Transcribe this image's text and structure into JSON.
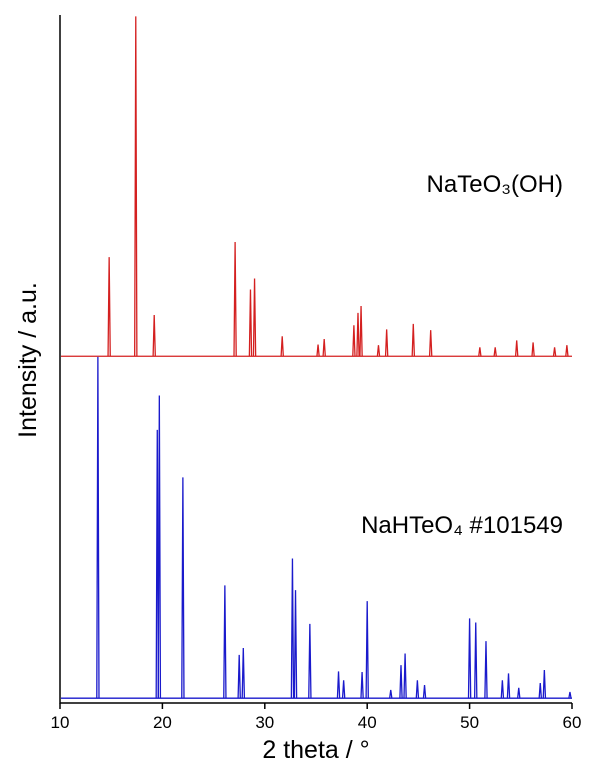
{
  "chart_data": {
    "type": "line",
    "xlabel": "2 theta / °",
    "ylabel": "Intensity / a.u.",
    "xlim": [
      10,
      60
    ],
    "xticks": [
      10,
      20,
      30,
      40,
      50,
      60
    ],
    "ylim": [
      0,
      100
    ],
    "series": [
      {
        "name": "NaTeO₃(OH)",
        "color": "#d42020",
        "offset": 50.4,
        "x": [
          14.8,
          17.4,
          19.2,
          27.1,
          28.6,
          29.0,
          31.7,
          35.2,
          35.8,
          38.7,
          39.1,
          39.4,
          41.1,
          41.9,
          44.5,
          46.2,
          51.0,
          52.5,
          54.6,
          56.2,
          58.3,
          59.5
        ],
        "values": [
          14.4,
          49.4,
          6.0,
          16.6,
          9.7,
          11.3,
          2.9,
          1.7,
          2.5,
          4.5,
          6.3,
          7.3,
          1.6,
          3.9,
          4.7,
          3.8,
          1.3,
          1.3,
          2.3,
          2.0,
          1.3,
          1.6
        ]
      },
      {
        "name": "NaHTeO₄ #101549",
        "color": "#1a1acc",
        "offset": 0.7,
        "x": [
          13.7,
          19.5,
          19.7,
          22.0,
          26.1,
          27.5,
          27.9,
          32.7,
          33.0,
          34.4,
          37.2,
          37.7,
          39.5,
          40.0,
          42.3,
          43.3,
          43.7,
          44.9,
          45.6,
          50.0,
          50.6,
          51.6,
          53.2,
          53.8,
          54.8,
          56.9,
          57.3,
          59.8
        ],
        "values": [
          49.6,
          39.0,
          44.0,
          32.1,
          16.4,
          6.3,
          7.3,
          20.3,
          15.7,
          10.8,
          3.9,
          2.6,
          3.8,
          14.1,
          1.2,
          4.8,
          6.5,
          2.6,
          1.9,
          11.6,
          11.0,
          8.3,
          2.6,
          3.6,
          1.5,
          2.2,
          4.1,
          0.9
        ]
      }
    ]
  }
}
